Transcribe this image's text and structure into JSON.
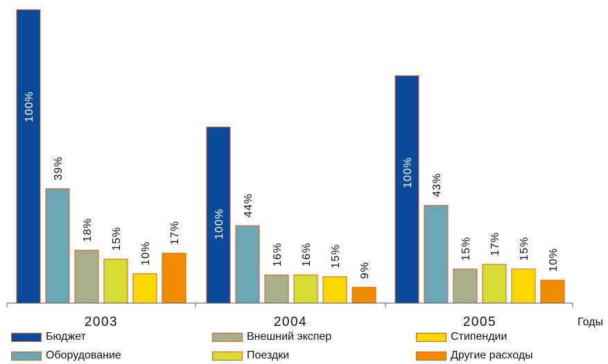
{
  "chart_data": {
    "type": "bar",
    "categories": [
      "2003",
      "2004",
      "2005"
    ],
    "xlabel": "Годы",
    "ylim": [
      0,
      100
    ],
    "grid": false,
    "legend_position": "bottom",
    "groups": [
      {
        "year": "2003",
        "bars": [
          {
            "series": "Бюджет",
            "value": 100,
            "label": "100%"
          },
          {
            "series": "Оборудование",
            "value": 39,
            "label": "39%"
          },
          {
            "series": "Внешний экспер",
            "value": 18,
            "label": "18%"
          },
          {
            "series": "Поездки",
            "value": 15,
            "label": "15%"
          },
          {
            "series": "Стипендии",
            "value": 10,
            "label": "10%"
          },
          {
            "series": "Другие расходы",
            "value": 17,
            "label": "17%"
          }
        ]
      },
      {
        "year": "2004",
        "bars": [
          {
            "series": "Бюджет",
            "value": 60,
            "label": "100%"
          },
          {
            "series": "Оборудование",
            "value": 26.4,
            "label": "44%"
          },
          {
            "series": "Внешний экспер",
            "value": 9.6,
            "label": "16%"
          },
          {
            "series": "Поездки",
            "value": 9.6,
            "label": "16%"
          },
          {
            "series": "Стипендии",
            "value": 9,
            "label": "15%"
          },
          {
            "series": "Другие расходы",
            "value": 5.4,
            "label": "9%"
          }
        ]
      },
      {
        "year": "2005",
        "bars": [
          {
            "series": "Бюджет",
            "value": 77.5,
            "label": "100%"
          },
          {
            "series": "Оборудование",
            "value": 33.3,
            "label": "43%"
          },
          {
            "series": "Внешний экспер",
            "value": 11.6,
            "label": "15%"
          },
          {
            "series": "Поездки",
            "value": 13.2,
            "label": "17%"
          },
          {
            "series": "Стипендии",
            "value": 11.6,
            "label": "15%"
          },
          {
            "series": "Другие расходы",
            "value": 7.8,
            "label": "10%"
          }
        ]
      }
    ]
  },
  "legend": [
    {
      "name": "Бюджет",
      "color": "#0a4a9a"
    },
    {
      "name": "Оборудование",
      "color": "#6aa6b3"
    },
    {
      "name": "Внешний экспер",
      "color": "#a8ae8a"
    },
    {
      "name": "Поездки",
      "color": "#d6dc32"
    },
    {
      "name": "Стипендии",
      "color": "#fed800"
    },
    {
      "name": "Другие расходы",
      "color": "#f08c00"
    }
  ]
}
